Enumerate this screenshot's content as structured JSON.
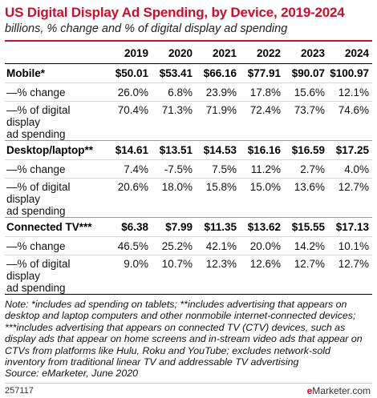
{
  "title": "US Digital Display Ad Spending, by Device, 2019-2024",
  "subtitle": "billions, % change and % of digital display ad spending",
  "chart_data": {
    "type": "table",
    "columns": [
      "2019",
      "2020",
      "2021",
      "2022",
      "2023",
      "2024"
    ],
    "groups": [
      {
        "name": "Mobile*",
        "spend": [
          "$50.01",
          "$53.41",
          "$66.16",
          "$77.91",
          "$90.07",
          "$100.97"
        ],
        "change_label": "—% change",
        "change": [
          "26.0%",
          "6.8%",
          "23.9%",
          "17.8%",
          "15.6%",
          "12.1%"
        ],
        "share_label_1": "—% of digital display",
        "share_label_2": "ad spending",
        "share": [
          "70.4%",
          "71.3%",
          "71.9%",
          "72.4%",
          "73.7%",
          "74.6%"
        ]
      },
      {
        "name": "Desktop/laptop**",
        "spend": [
          "$14.61",
          "$13.51",
          "$14.53",
          "$16.16",
          "$16.59",
          "$17.25"
        ],
        "change_label": "—% change",
        "change": [
          "7.4%",
          "-7.5%",
          "7.5%",
          "11.2%",
          "2.7%",
          "4.0%"
        ],
        "share_label_1": "—% of digital display",
        "share_label_2": "ad spending",
        "share": [
          "20.6%",
          "18.0%",
          "15.8%",
          "15.0%",
          "13.6%",
          "12.7%"
        ]
      },
      {
        "name": "Connected TV***",
        "spend": [
          "$6.38",
          "$7.99",
          "$11.35",
          "$13.62",
          "$15.55",
          "$17.13"
        ],
        "change_label": "—% change",
        "change": [
          "46.5%",
          "25.2%",
          "42.1%",
          "20.0%",
          "14.2%",
          "10.1%"
        ],
        "share_label_1": "—% of digital display",
        "share_label_2": "ad spending",
        "share": [
          "9.0%",
          "10.7%",
          "12.3%",
          "12.6%",
          "12.7%",
          "12.7%"
        ]
      }
    ]
  },
  "note": "Note: *includes ad spending on tablets; **includes advertising that appears on desktop and laptop computers and other nonmobile internet-connected devices; ***includes advertising that appears on connected TV (CTV) devices, such as display ads that appear on home screens and in-stream video ads that appear on CTVs from platforms like Hulu, Roku and YouTube; excludes network-sold inventory from traditional linear TV and addressable TV advertising",
  "source": "Source: eMarketer, June 2020",
  "chart_id": "257117",
  "logo": {
    "mark": "e",
    "text": "Marketer",
    "dot": ".",
    "suffix": "com"
  },
  "colors": {
    "accent": "#c8102e"
  }
}
